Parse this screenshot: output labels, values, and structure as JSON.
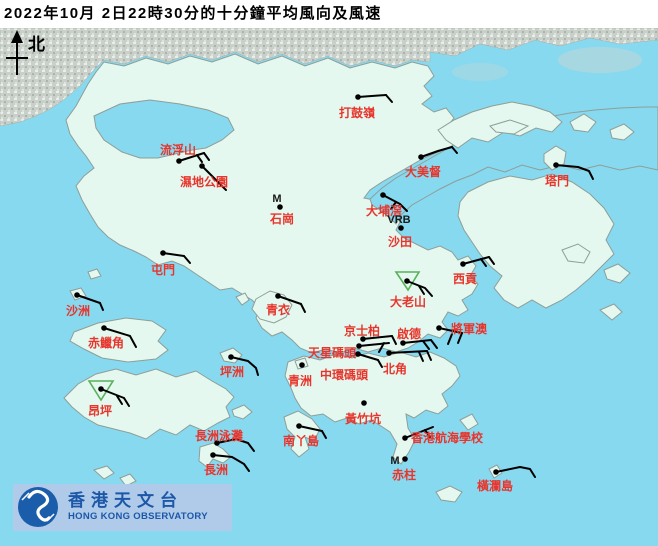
{
  "title": "2022年10月 2日22時30分的十分鐘平均風向及風速",
  "compass": {
    "label": "北"
  },
  "branding": {
    "org_cn": "香港天文台",
    "org_en": "HONG KONG OBSERVATORY"
  },
  "colors": {
    "sea": "#87D9F0",
    "land": "#E4F8EF",
    "urban_texture": "#C9D0CA",
    "station_label_red": "#E8352C",
    "wind_barb_black": "#000000",
    "triangle_green": "#58B158",
    "banner_bg": "#AFCBE9",
    "logo_blue": "#1A5DAB",
    "logo_text_blue": "#1C57A8"
  },
  "stations": [
    {
      "id": "ta-kwu-ling",
      "name": "打鼓嶺",
      "dot": [
        358,
        97
      ],
      "label": [
        357,
        117,
        "middle"
      ],
      "barb": [
        [
          358,
          97
        ],
        [
          386,
          95
        ]
      ],
      "feathers": [
        [
          [
            386,
            95
          ],
          [
            392,
            102
          ]
        ]
      ]
    },
    {
      "id": "lau-fau-shan",
      "name": "流浮山",
      "dot": [
        179,
        161
      ],
      "label": [
        178,
        154,
        "middle"
      ],
      "barb": [
        [
          179,
          161
        ],
        [
          204,
          153
        ]
      ],
      "feathers": [
        [
          [
            204,
            153
          ],
          [
            209,
            160
          ]
        ],
        [
          [
            197,
            155
          ],
          [
            202,
            162
          ]
        ]
      ]
    },
    {
      "id": "wetland-park",
      "name": "濕地公園",
      "dot": [
        202,
        166
      ],
      "label": [
        204,
        186,
        "middle"
      ],
      "barb": [
        [
          202,
          166
        ],
        [
          220,
          184
        ]
      ],
      "feathers": [
        [
          [
            220,
            184
          ],
          [
            226,
            190
          ]
        ]
      ]
    },
    {
      "id": "tai-mei-tuk",
      "name": "大美督",
      "dot": [
        421,
        157
      ],
      "label": [
        423,
        176,
        "middle"
      ],
      "barb": [
        [
          421,
          157
        ],
        [
          438,
          151
        ],
        [
          452,
          147
        ]
      ],
      "feathers": [
        [
          [
            452,
            147
          ],
          [
            457,
            153
          ]
        ]
      ]
    },
    {
      "id": "tap-mun",
      "name": "塔門",
      "dot": [
        556,
        165
      ],
      "label": [
        557,
        185,
        "middle"
      ],
      "barb": [
        [
          556,
          165
        ],
        [
          578,
          167
        ],
        [
          589,
          171
        ],
        [
          593,
          179
        ]
      ],
      "feathers": []
    },
    {
      "id": "shek-kong",
      "name": "石崗",
      "dot": [
        280,
        207
      ],
      "label": [
        282,
        223,
        "middle"
      ],
      "marker": [
        "M",
        277,
        202
      ]
    },
    {
      "id": "tai-po-kau",
      "name": "大埔滘",
      "dot": [
        383,
        195
      ],
      "label": [
        384,
        215,
        "middle"
      ],
      "barb": [
        [
          383,
          195
        ],
        [
          400,
          204
        ],
        [
          407,
          211
        ]
      ],
      "feathers": [
        [
          [
            396,
            202
          ],
          [
            391,
            209
          ]
        ]
      ]
    },
    {
      "id": "sha-tin",
      "name": "沙田",
      "dot": [
        401,
        228
      ],
      "label": [
        400,
        246,
        "middle"
      ],
      "marker": [
        "VRB",
        399,
        223
      ]
    },
    {
      "id": "tuen-mun",
      "name": "屯門",
      "dot": [
        163,
        253
      ],
      "label": [
        163,
        274,
        "middle"
      ],
      "barb": [
        [
          163,
          253
        ],
        [
          184,
          256
        ]
      ],
      "feathers": [
        [
          [
            184,
            256
          ],
          [
            190,
            263
          ]
        ]
      ]
    },
    {
      "id": "sai-kung",
      "name": "西貢",
      "dot": [
        463,
        264
      ],
      "label": [
        465,
        283,
        "middle"
      ],
      "barb": [
        [
          463,
          264
        ],
        [
          489,
          257
        ]
      ],
      "feathers": [
        [
          [
            489,
            257
          ],
          [
            494,
            264
          ]
        ],
        [
          [
            481,
            259
          ],
          [
            486,
            266
          ]
        ]
      ]
    },
    {
      "id": "sha-chau",
      "name": "沙洲",
      "dot": [
        77,
        295
      ],
      "label": [
        78,
        315,
        "middle"
      ],
      "barb": [
        [
          77,
          295
        ],
        [
          100,
          303
        ]
      ],
      "feathers": [
        [
          [
            100,
            303
          ],
          [
            103,
            310
          ]
        ]
      ]
    },
    {
      "id": "tates-cairn",
      "name": "大老山",
      "dot": [
        407,
        281
      ],
      "label": [
        408,
        306,
        "middle"
      ],
      "barb": [
        [
          407,
          281
        ],
        [
          425,
          288
        ],
        [
          432,
          296
        ]
      ],
      "feathers": [
        [
          [
            419,
            286
          ],
          [
            424,
            294
          ]
        ]
      ],
      "triangle": [
        [
          396,
          272
        ],
        [
          419,
          272
        ],
        [
          408,
          290
        ]
      ]
    },
    {
      "id": "chek-lap-kok",
      "name": "赤鱲角",
      "dot": [
        104,
        328
      ],
      "label": [
        106,
        347,
        "middle"
      ],
      "barb": [
        [
          104,
          328
        ],
        [
          130,
          336
        ],
        [
          136,
          347
        ]
      ],
      "feathers": []
    },
    {
      "id": "tsing-yi",
      "name": "青衣",
      "dot": [
        278,
        296
      ],
      "label": [
        278,
        314,
        "middle"
      ],
      "barb": [
        [
          278,
          296
        ],
        [
          301,
          304
        ]
      ],
      "feathers": [
        [
          [
            301,
            304
          ],
          [
            305,
            312
          ]
        ]
      ]
    },
    {
      "id": "kings-park",
      "name": "京士柏",
      "dot": [
        363,
        339
      ],
      "label": [
        362,
        335,
        "middle"
      ],
      "barb": [
        [
          363,
          339
        ],
        [
          392,
          336
        ]
      ],
      "feathers": [
        [
          [
            392,
            336
          ],
          [
            396,
            344
          ]
        ]
      ]
    },
    {
      "id": "kai-tak",
      "name": "啟德",
      "dot": [
        403,
        343
      ],
      "label": [
        409,
        338,
        "middle"
      ],
      "barb": [
        [
          403,
          343
        ],
        [
          431,
          340
        ]
      ],
      "feathers": [
        [
          [
            431,
            340
          ],
          [
            437,
            348
          ]
        ],
        [
          [
            423,
            341
          ],
          [
            429,
            349
          ]
        ]
      ]
    },
    {
      "id": "tseung-kwan-o",
      "name": "將軍澳",
      "dot": [
        439,
        328
      ],
      "label": [
        469,
        333,
        "middle"
      ],
      "barb": [
        [
          439,
          328
        ],
        [
          462,
          333
        ]
      ],
      "feathers": [
        [
          [
            462,
            333
          ],
          [
            458,
            343
          ]
        ],
        [
          [
            452,
            334
          ],
          [
            448,
            344
          ]
        ]
      ]
    },
    {
      "id": "star-ferry-pier",
      "name": "天星碼頭",
      "dot": [
        359,
        346
      ],
      "label": [
        356,
        357,
        "end"
      ],
      "barb": [
        [
          359,
          346
        ],
        [
          389,
          343
        ]
      ],
      "feathers": [
        [
          [
            384,
            343
          ],
          [
            379,
            352
          ]
        ]
      ]
    },
    {
      "id": "central-pier",
      "name": "中環碼頭",
      "dot": [
        358,
        354
      ],
      "label": [
        344,
        379,
        "middle"
      ],
      "barb": [
        [
          358,
          354
        ],
        [
          378,
          360
        ]
      ],
      "feathers": [
        [
          [
            378,
            360
          ],
          [
            382,
            367
          ]
        ]
      ]
    },
    {
      "id": "north-point",
      "name": "北角",
      "dot": [
        389,
        353
      ],
      "label": [
        395,
        373,
        "middle"
      ],
      "barb": [
        [
          389,
          353
        ],
        [
          427,
          351
        ]
      ],
      "feathers": [
        [
          [
            427,
            351
          ],
          [
            431,
            360
          ]
        ],
        [
          [
            419,
            352
          ],
          [
            423,
            361
          ]
        ]
      ]
    },
    {
      "id": "green-island",
      "name": "青洲",
      "dot": [
        302,
        365
      ],
      "label": [
        300,
        385,
        "middle"
      ]
    },
    {
      "id": "wong-chuk-hang",
      "name": "黃竹坑",
      "dot": [
        364,
        403
      ],
      "label": [
        363,
        423,
        "middle"
      ]
    },
    {
      "id": "ngong-ping",
      "name": "昂坪",
      "dot": [
        101,
        389
      ],
      "label": [
        100,
        415,
        "middle"
      ],
      "barb": [
        [
          101,
          389
        ],
        [
          124,
          398
        ]
      ],
      "feathers": [
        [
          [
            124,
            398
          ],
          [
            129,
            406
          ]
        ],
        [
          [
            117,
            396
          ],
          [
            122,
            404
          ]
        ]
      ],
      "triangle": [
        [
          89,
          381
        ],
        [
          113,
          381
        ],
        [
          101,
          400
        ]
      ]
    },
    {
      "id": "peng-chau",
      "name": "坪洲",
      "dot": [
        231,
        357
      ],
      "label": [
        232,
        376,
        "middle"
      ],
      "barb": [
        [
          231,
          357
        ],
        [
          248,
          361
        ],
        [
          256,
          368
        ],
        [
          258,
          375
        ]
      ],
      "feathers": []
    },
    {
      "id": "cheung-chau-beach",
      "name": "長洲泳灘",
      "dot": [
        217,
        443
      ],
      "label": [
        219,
        440,
        "middle"
      ],
      "barb": [
        [
          217,
          443
        ],
        [
          236,
          439
        ],
        [
          248,
          443
        ],
        [
          254,
          451
        ]
      ],
      "feathers": []
    },
    {
      "id": "cheung-chau",
      "name": "長洲",
      "dot": [
        213,
        455
      ],
      "label": [
        216,
        474,
        "middle"
      ],
      "barb": [
        [
          213,
          455
        ],
        [
          232,
          457
        ],
        [
          244,
          464
        ],
        [
          249,
          471
        ]
      ],
      "feathers": []
    },
    {
      "id": "lamma-island",
      "name": "南丫島",
      "dot": [
        299,
        426
      ],
      "label": [
        301,
        445,
        "middle"
      ],
      "barb": [
        [
          299,
          426
        ],
        [
          322,
          431
        ]
      ],
      "feathers": [
        [
          [
            322,
            431
          ],
          [
            326,
            438
          ]
        ]
      ]
    },
    {
      "id": "sea-school",
      "name": "香港航海學校",
      "dot": [
        405,
        438
      ],
      "label": [
        411,
        442,
        "start"
      ],
      "barb": [
        [
          405,
          438
        ],
        [
          433,
          427
        ]
      ],
      "feathers": [
        [
          [
            425,
            430
          ],
          [
            430,
            437
          ]
        ]
      ]
    },
    {
      "id": "stanley",
      "name": "赤柱",
      "dot": [
        405,
        459
      ],
      "label": [
        404,
        479,
        "middle"
      ],
      "marker": [
        "M",
        395,
        464
      ]
    },
    {
      "id": "waglan-island",
      "name": "橫瀾島",
      "dot": [
        496,
        472
      ],
      "label": [
        495,
        490,
        "middle"
      ],
      "barb": [
        [
          496,
          472
        ],
        [
          520,
          467
        ],
        [
          530,
          469
        ],
        [
          535,
          477
        ]
      ],
      "feathers": []
    }
  ]
}
